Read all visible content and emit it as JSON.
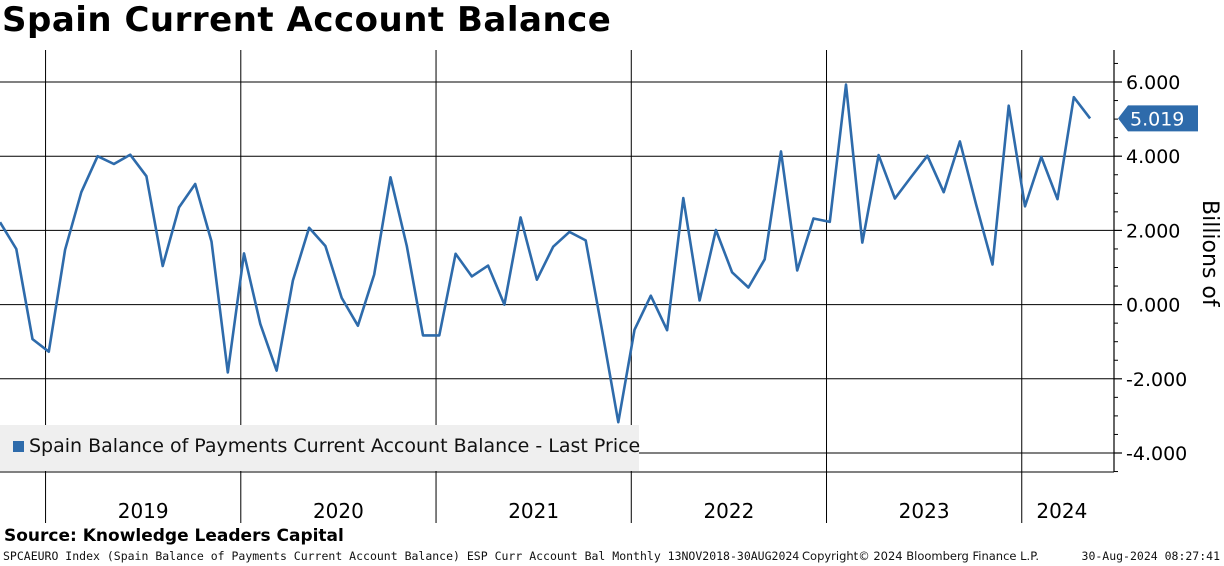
{
  "title": "Spain Current Account Balance",
  "source": "Source: Knowledge Leaders Capital",
  "footer": {
    "description": "SPCAEURO Index (Spain Balance of Payments Current Account Balance) ESP Curr Account Bal  Monthly 13NOV2018-30AUG2024",
    "copyright": "Copyright© 2024 Bloomberg Finance L.P.",
    "timestamp": "30-Aug-2024 08:27:41"
  },
  "colors": {
    "series": "#2e6bab",
    "grid": "#000000",
    "legend_bg": "#efefef"
  },
  "chart_data": {
    "type": "line",
    "title": "Spain Current Account Balance",
    "ylabel": "Billions of",
    "ylim": [
      -4.8,
      6.8
    ],
    "yticks": [
      6.0,
      4.0,
      2.0,
      0.0,
      -2.0,
      -4.0
    ],
    "ytick_labels": [
      "6.000",
      "4.000",
      "2.000",
      "0.000",
      "-2.000",
      "-4.000"
    ],
    "year_labels": [
      "2019",
      "2020",
      "2021",
      "2022",
      "2023",
      "2024"
    ],
    "legend": "Spain Balance of Payments Current Account Balance - Last Price",
    "last_value_label": "5.019",
    "series": [
      {
        "name": "Spain Balance of Payments Current Account Balance - Last Price",
        "x_start": "2018-10",
        "values": [
          2.22,
          1.5,
          -0.93,
          -1.27,
          1.48,
          3.03,
          4.0,
          3.79,
          4.04,
          3.46,
          1.04,
          2.62,
          3.25,
          1.7,
          -1.83,
          1.38,
          -0.52,
          -1.78,
          0.65,
          2.07,
          1.58,
          0.18,
          -0.57,
          0.81,
          3.43,
          1.58,
          -0.83,
          -0.83,
          1.37,
          0.76,
          1.05,
          0.0,
          2.35,
          0.67,
          1.56,
          1.96,
          1.73,
          -0.68,
          -3.17,
          -0.68,
          0.24,
          -0.69,
          2.87,
          0.11,
          2.01,
          0.87,
          0.46,
          1.22,
          4.13,
          0.92,
          2.32,
          2.23,
          5.93,
          1.67,
          4.03,
          2.86,
          3.44,
          4.01,
          3.03,
          4.4,
          2.69,
          1.08,
          5.36,
          2.65,
          3.98,
          2.84,
          5.59,
          5.019
        ]
      }
    ]
  }
}
